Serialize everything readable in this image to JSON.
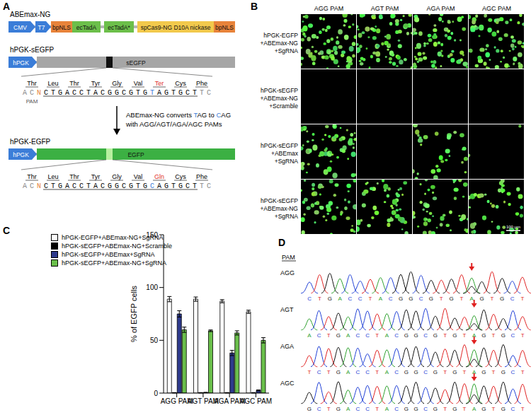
{
  "chart_data": {
    "type": "bar",
    "categories": [
      "AGG PAM",
      "AGT PAM",
      "AGA PAM",
      "AGC PAM"
    ],
    "y_label": "% of EGFP cells",
    "ylim": [
      0,
      150
    ],
    "yticks": [
      0,
      50,
      100,
      150
    ],
    "legend": "upper left",
    "series": [
      {
        "name": "hPGK-EGFP+ABEmax-NG+SgRNA",
        "color": "#ffffff",
        "values": [
          89,
          89,
          87,
          77
        ],
        "errors": [
          2.5,
          2,
          1.5,
          1.5
        ]
      },
      {
        "name": "hPGK-sEGFP+ABEmax-NG+Scramble",
        "color": "#000000",
        "values": [
          0.3,
          0.3,
          0.3,
          0.3
        ],
        "errors": [
          0.2,
          0.2,
          0.2,
          0.2
        ]
      },
      {
        "name": "hPGK-sEGFP+ABEmax+SgRNA",
        "color": "#2e3a8c",
        "values": [
          75,
          0.5,
          38,
          2.5
        ],
        "errors": [
          3,
          0.2,
          2.5,
          0.5
        ]
      },
      {
        "name": "hPGK-sEGFP+ABEmax-NG+SgRNA",
        "color": "#6abf4b",
        "values": [
          60,
          59,
          57,
          50
        ],
        "errors": [
          2.5,
          0.8,
          2,
          2.5
        ]
      }
    ]
  },
  "panel_c": {
    "label": "C"
  },
  "panel_a": {
    "label": "A",
    "constructs": [
      {
        "name": "ABEmax-NG",
        "blocks": [
          {
            "text": "CMV",
            "color": "#3b7dd8"
          },
          {
            "text": "T7",
            "color": "#3b7dd8"
          },
          {
            "text": "bpNLS",
            "color": "#e8833a"
          },
          {
            "text": "ecTadA",
            "color": "#6cbf4a"
          },
          {
            "text": "ecTadA*",
            "color": "#6cbf4a"
          },
          {
            "text": "spCas9-NG D10A nickase",
            "color": "#f2c94c"
          },
          {
            "text": "bpNLS",
            "color": "#e8833a"
          }
        ]
      },
      {
        "name": "hPGK-sEGFP",
        "blocks": [
          {
            "text": "hPGK",
            "color": "#3b7dd8"
          },
          {
            "text": "sEGFP",
            "color": "#a6a6a6"
          }
        ],
        "codons": [
          {
            "text": "Thr",
            "color": "#000000"
          },
          {
            "text": "Leu",
            "color": "#000000"
          },
          {
            "text": "Thr",
            "color": "#000000"
          },
          {
            "text": "Tyr",
            "color": "#000000"
          },
          {
            "text": "Gly",
            "color": "#000000"
          },
          {
            "text": "Val",
            "color": "#000000"
          },
          {
            "text": "Ter",
            "color": "#e0302a"
          },
          {
            "text": "Cys",
            "color": "#000000"
          },
          {
            "text": "Phe",
            "color": "#000000"
          }
        ],
        "sequence": [
          {
            "text": "AC",
            "color": "#8a8a8a"
          },
          {
            "text": "N",
            "color": "#e8833a"
          },
          {
            "text": "CTGACCTACGGCGTG",
            "color": "#000000"
          },
          {
            "text": "T",
            "color": "#3b7dd8"
          },
          {
            "text": "AGTGCT",
            "color": "#000000"
          },
          {
            "text": "TC",
            "color": "#8a8a8a"
          }
        ],
        "pam": "PAM"
      },
      {
        "name": "hPGK-EGFP",
        "blocks": [
          {
            "text": "hPGK",
            "color": "#3b7dd8"
          },
          {
            "text": "EGFP",
            "color": "#3cb043"
          }
        ],
        "codons": [
          {
            "text": "Thr",
            "color": "#000000"
          },
          {
            "text": "Leu",
            "color": "#000000"
          },
          {
            "text": "Thr",
            "color": "#000000"
          },
          {
            "text": "Tyr",
            "color": "#000000"
          },
          {
            "text": "Gly",
            "color": "#000000"
          },
          {
            "text": "Val",
            "color": "#000000"
          },
          {
            "text": "Gln",
            "color": "#e0302a"
          },
          {
            "text": "Cys",
            "color": "#000000"
          },
          {
            "text": "Phe",
            "color": "#000000"
          }
        ],
        "sequence": [
          {
            "text": "AC",
            "color": "#8a8a8a"
          },
          {
            "text": "N",
            "color": "#e8833a"
          },
          {
            "text": "CTGACCTACGGCGTG",
            "color": "#000000"
          },
          {
            "text": "C",
            "color": "#3b7dd8"
          },
          {
            "text": "AGTGCT",
            "color": "#000000"
          },
          {
            "text": "TC",
            "color": "#8a8a8a"
          }
        ],
        "pam": "PAM"
      }
    ],
    "conversion": {
      "line1": [
        {
          "text": "ABEmax-NG converts ",
          "color": "#000000"
        },
        {
          "text": "T",
          "color": "#3b7dd8"
        },
        {
          "text": "AG to ",
          "color": "#000000"
        },
        {
          "text": "C",
          "color": "#3b7dd8"
        },
        {
          "text": "AG",
          "color": "#000000"
        }
      ],
      "line2": "with AGG/AGT/AGA/AGC PAMs"
    }
  },
  "panel_b": {
    "label": "B",
    "columns": [
      "AGG PAM",
      "AGT PAM",
      "AGA PAM",
      "AGC PAM"
    ],
    "rows": [
      [
        "hPGK-EGFP",
        "+ABEmax-NG",
        "+SgRNA"
      ],
      [
        "hPGK-sEGFP",
        "+ABEmax-NG",
        "+Scramble"
      ],
      [
        "hPGK-sEGFP",
        "+ABEmax",
        "+SgRNA"
      ],
      [
        "hPGK-sEGFP",
        "+ABEmax-NG",
        "+SgRNA"
      ]
    ],
    "scale_bar": "100 μm"
  },
  "panel_d": {
    "label": "D",
    "pam_label": "PAM",
    "rows": [
      {
        "pam": "AGG",
        "sequence": "CTGACCTACGGCGTGTAGTGCT"
      },
      {
        "pam": "AGT",
        "sequence": "ACTGACCTACGGCGTGTAGTGCT"
      },
      {
        "pam": "AGA",
        "sequence": "TCTGACCTACGGCGTGTAGTGCT"
      },
      {
        "pam": "AGC",
        "sequence": "GCTGACCTACGGCGTGTAGTGCT"
      }
    ]
  }
}
